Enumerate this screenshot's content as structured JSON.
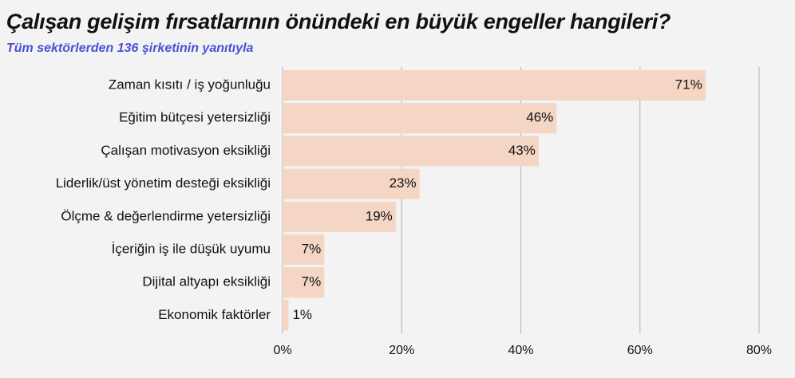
{
  "header": {
    "title": "Çalışan gelişim fırsatlarının önündeki en büyük engeller hangileri?",
    "subtitle": "Tüm sektörlerden 136 şirketinin yanıtıyla"
  },
  "colors": {
    "bar": "#f5d5c3",
    "grid": "#bbbbbb",
    "subtitle": "#4a4fd6",
    "text": "#111111"
  },
  "chart_data": {
    "type": "bar",
    "orientation": "horizontal",
    "title": "Çalışan gelişim fırsatlarının önündeki en büyük engeller hangileri?",
    "subtitle": "Tüm sektörlerden 136 şirketinin yanıtıyla",
    "categories": [
      "Zaman kısıtı / iş yoğunluğu",
      "Eğitim bütçesi yetersizliği",
      "Çalışan motivasyon eksikliği",
      "Liderlik/üst yönetim desteği eksikliği",
      "Ölçme & değerlendirme yetersizliği",
      "İçeriğin iş ile düşük uyumu",
      "Dijital altyapı eksikliği",
      "Ekonomik faktörler"
    ],
    "values": [
      71,
      46,
      43,
      23,
      19,
      7,
      7,
      1
    ],
    "value_labels": [
      "71%",
      "46%",
      "43%",
      "23%",
      "19%",
      "7%",
      "7%",
      "1%"
    ],
    "xlim": [
      0,
      80
    ],
    "xticks": [
      0,
      20,
      40,
      60,
      80
    ],
    "xtick_labels": [
      "0%",
      "20%",
      "40%",
      "60%",
      "80%"
    ],
    "xlabel": "",
    "ylabel": "",
    "grid": true,
    "legend": "none"
  }
}
